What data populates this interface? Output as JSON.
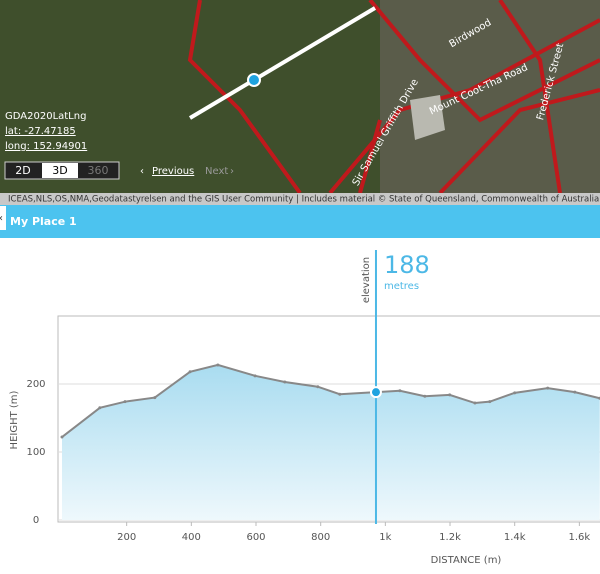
{
  "map": {
    "crs": "GDA2020LatLng",
    "lat": "lat: -27.47185",
    "long": "long: 152.94901",
    "view_buttons": [
      "2D",
      "3D",
      "360"
    ],
    "previous": "Previous",
    "next": "Next",
    "road_labels": [
      "Birdwood",
      "Mount Coot-Tha Road",
      "Frederick Street",
      "Sir Samuel Griffith Drive"
    ],
    "attribution": "ICEAS,NLS,OS,NMA,Geodatastyrelsen and the GIS User Community | Includes material © State of Queensland, Commonwealth of Australia (Geoscie"
  },
  "panel": {
    "title": "My Place 1"
  },
  "chart_data": {
    "type": "area",
    "x_label": "DISTANCE (m)",
    "y_label": "HEIGHT (m)",
    "x": [
      0,
      117,
      195,
      287,
      396,
      482,
      597,
      689,
      791,
      859,
      971,
      1045,
      1122,
      1199,
      1277,
      1323,
      1400,
      1502,
      1586,
      1663
    ],
    "series": [
      {
        "name": "elevation",
        "color": "#888888",
        "values": [
          122,
          165,
          174,
          180,
          218,
          228,
          212,
          203,
          196,
          185,
          188,
          190,
          182,
          184,
          172,
          174,
          187,
          194,
          188,
          179
        ]
      }
    ],
    "xlim": [
      0,
      1670
    ],
    "ylim": [
      0,
      300
    ],
    "xticks": [
      200,
      400,
      600,
      800,
      {
        "value": 1000,
        "label": "1k"
      },
      {
        "value": 1200,
        "label": "1.2k"
      },
      {
        "value": 1400,
        "label": "1.4k"
      },
      {
        "value": 1600,
        "label": "1.6k"
      }
    ],
    "yticks": [
      0,
      100,
      200
    ],
    "grid": true,
    "cursor": {
      "label": "elevation",
      "value": 188,
      "unit": "metres"
    }
  }
}
